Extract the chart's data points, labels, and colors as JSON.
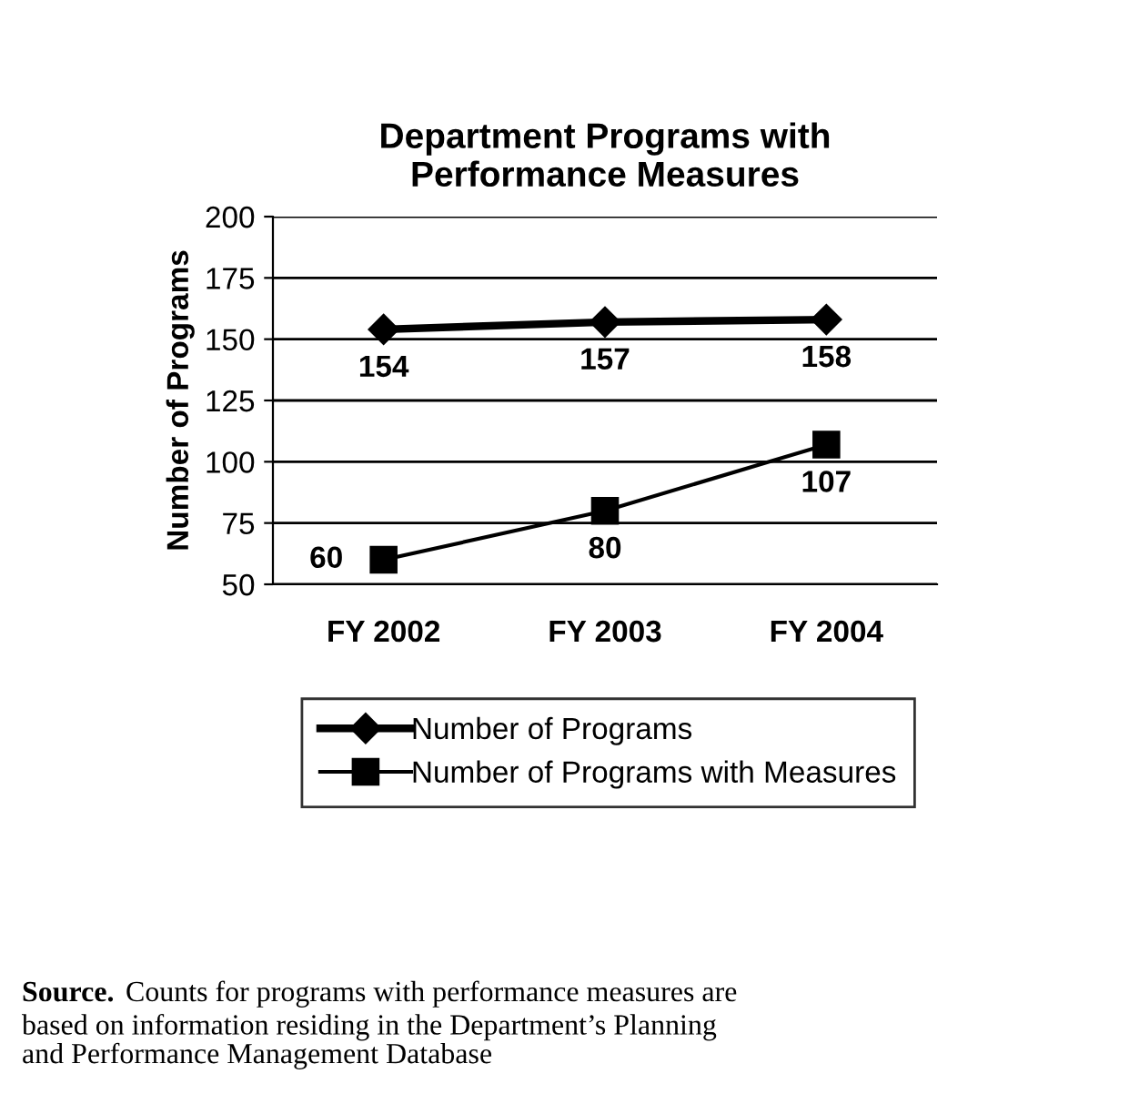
{
  "chart_data": {
    "type": "line",
    "title": "Department Programs with\nPerformance Measures",
    "ylabel": "Number of Programs",
    "categories": [
      "FY 2002",
      "FY 2003",
      "FY 2004"
    ],
    "series": [
      {
        "name": "Number of Programs",
        "color": "#000000",
        "values": [
          154,
          157,
          158
        ],
        "marker": "diamond"
      },
      {
        "name": "Number of Programs with Measures",
        "color": "#000000",
        "values": [
          60,
          80,
          107
        ],
        "marker": "square"
      }
    ],
    "ylim": [
      50,
      200
    ],
    "yticks": [
      50,
      75,
      100,
      125,
      150,
      175,
      200
    ],
    "grid": "y",
    "legend": "bottom",
    "data_labels": true,
    "annotations": [
      "Source.",
      "Counts for programs with performance measures are\nbased on information residing in the Department’s Planning\nand Performance Management Database"
    ]
  }
}
